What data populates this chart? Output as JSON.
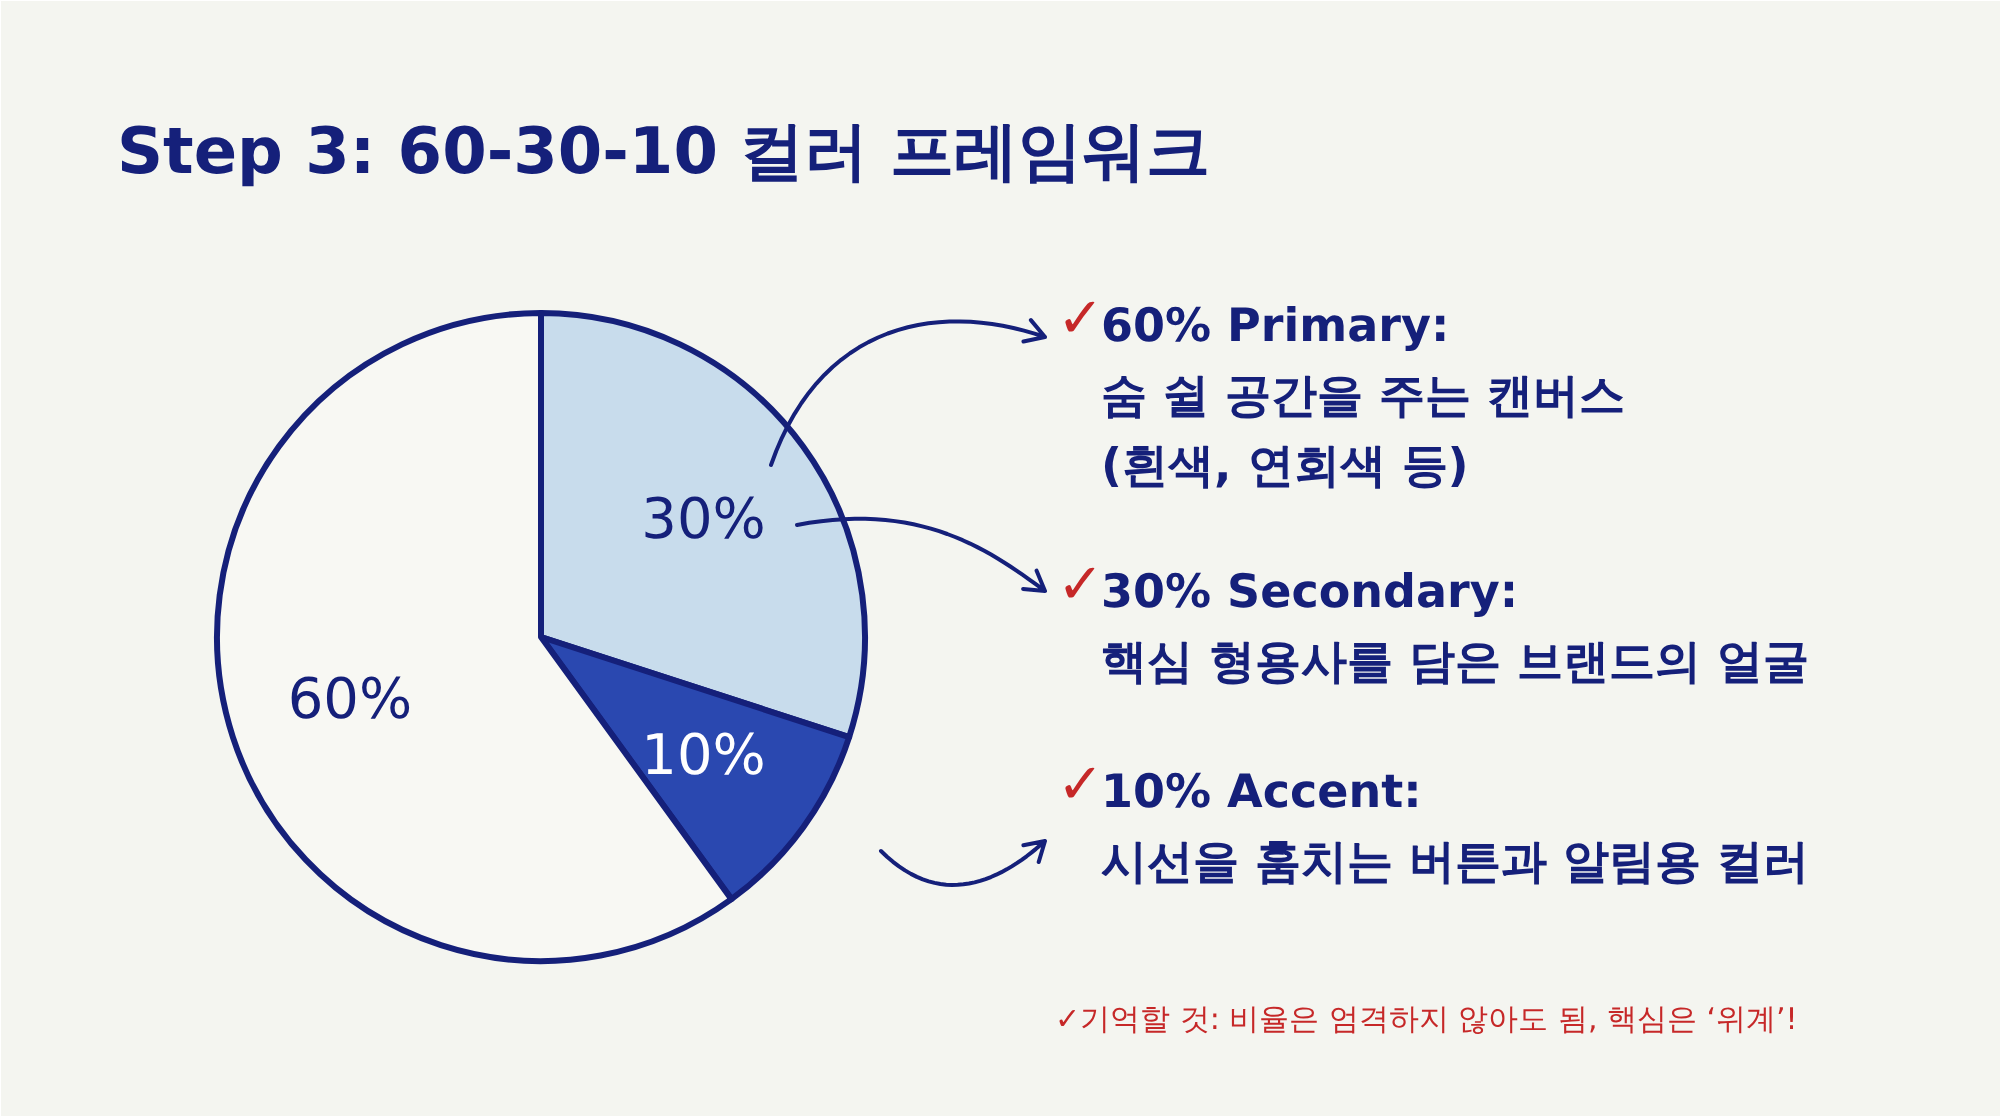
{
  "chart_data": {
    "type": "pie",
    "title": "Step 3: 60-30-10 컬러 프레임워크",
    "categories": [
      null,
      null,
      null
    ],
    "values": [
      30,
      10,
      60
    ],
    "colors": [
      "#c8dcec",
      "#2a48b0",
      "#f8f8f3"
    ],
    "value_labels": [
      "30%",
      "10%",
      "60%"
    ],
    "annotations": [
      "✓60% Primary:\n숨 쉴 공간을 주는 캔버스\n(흰색, 연회색 등)",
      "✓30% Secondary:\n핵심 형용사를 담은 브랜드의 얼굴",
      "✓10% Accent:\n시선을 훔치는 버튼과 알림용 컬러",
      "✓기억할 것: 비율은 엄격하지 않아도 됨, 핵심은 ‘위계’!"
    ]
  }
}
